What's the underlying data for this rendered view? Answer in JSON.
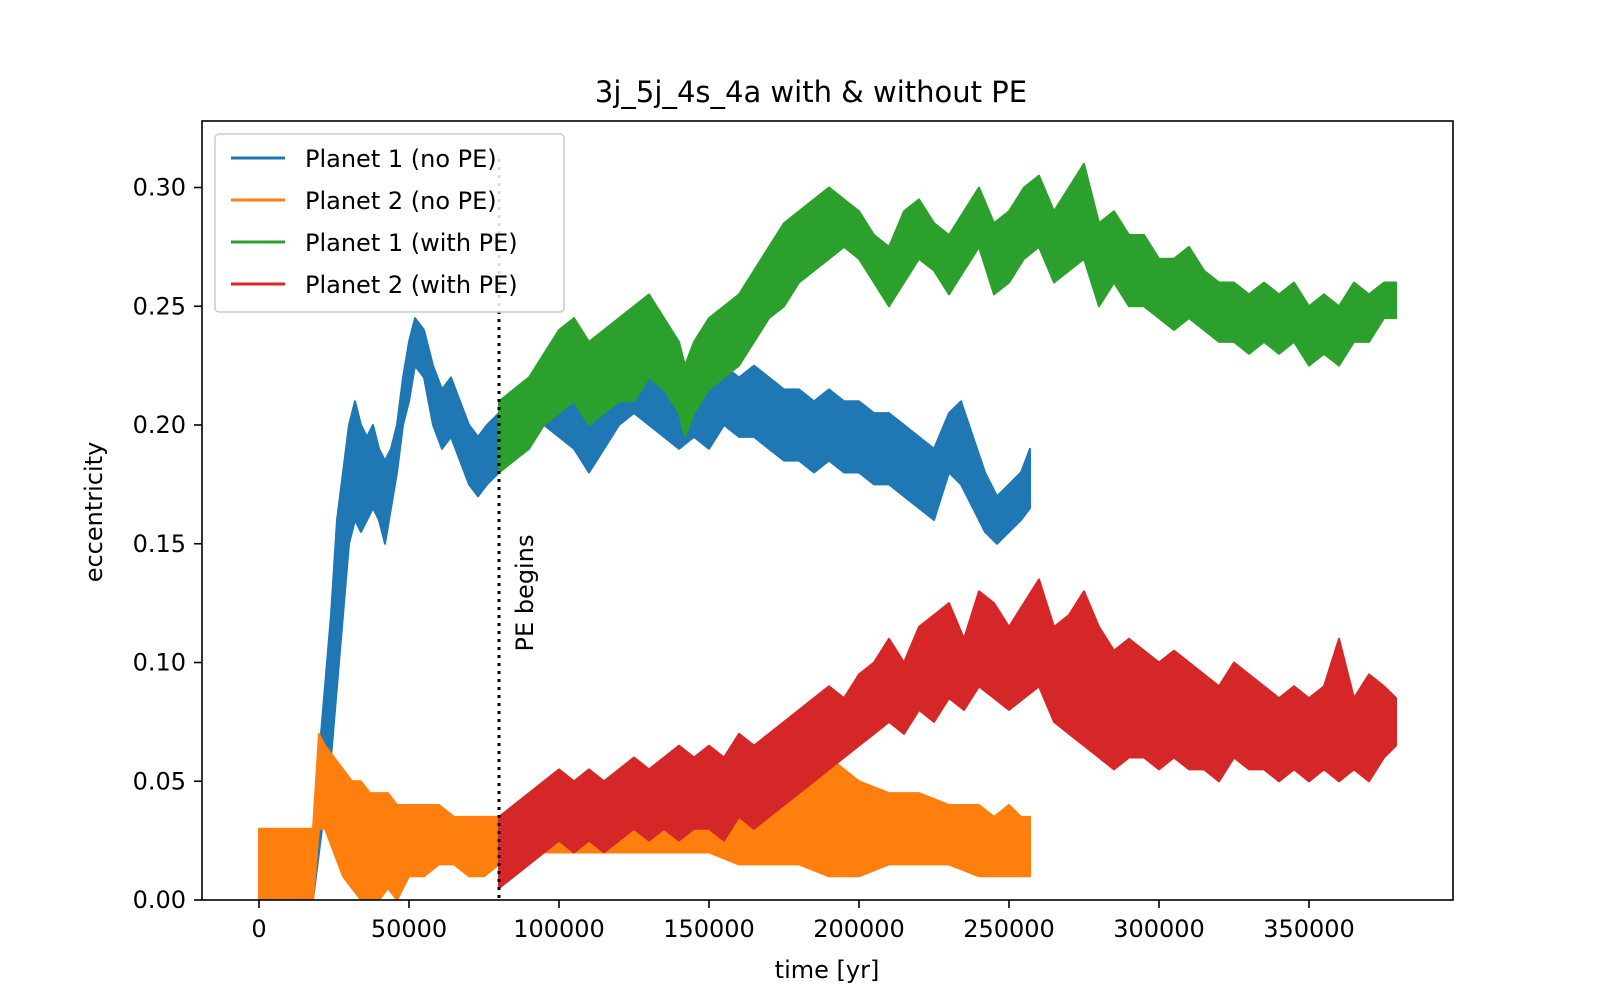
{
  "chart_data": {
    "type": "line",
    "title": "3j_5j_4s_4a with & without PE",
    "xlabel": "time [yr]",
    "ylabel": "eccentricity",
    "xlim": [
      -19000,
      398000
    ],
    "ylim": [
      0,
      0.328
    ],
    "xticks": [
      0,
      50000,
      100000,
      150000,
      200000,
      250000,
      300000,
      350000
    ],
    "xtick_labels": [
      "0",
      "50000",
      "100000",
      "150000",
      "200000",
      "250000",
      "300000",
      "350000"
    ],
    "yticks": [
      0.0,
      0.05,
      0.1,
      0.15,
      0.2,
      0.25,
      0.3
    ],
    "ytick_labels": [
      "0.00",
      "0.05",
      "0.10",
      "0.15",
      "0.20",
      "0.25",
      "0.30"
    ],
    "grid": false,
    "legend_position": "upper-left",
    "annotation": {
      "x": 80000,
      "label": "PE begins",
      "style": "dotted vertical line"
    },
    "series": [
      {
        "name": "Planet 1 (no PE)",
        "color": "#1f77b4",
        "x": [
          18000,
          20000,
          22000,
          24000,
          26000,
          28000,
          30000,
          32000,
          34000,
          36000,
          38000,
          40000,
          42000,
          44000,
          46000,
          48000,
          50000,
          52000,
          55000,
          58000,
          61000,
          64000,
          67000,
          70000,
          73000,
          76000,
          80000,
          85000,
          90000,
          95000,
          100000,
          105000,
          110000,
          115000,
          120000,
          125000,
          130000,
          135000,
          140000,
          145000,
          150000,
          155000,
          160000,
          165000,
          170000,
          175000,
          180000,
          185000,
          190000,
          195000,
          200000,
          205000,
          210000,
          215000,
          220000,
          225000,
          230000,
          234000,
          238000,
          242000,
          246000,
          250000,
          254000,
          257000
        ],
        "y_low": [
          0.0,
          0.02,
          0.04,
          0.06,
          0.09,
          0.12,
          0.15,
          0.16,
          0.155,
          0.16,
          0.165,
          0.16,
          0.15,
          0.165,
          0.18,
          0.2,
          0.21,
          0.225,
          0.22,
          0.2,
          0.19,
          0.195,
          0.185,
          0.175,
          0.17,
          0.175,
          0.18,
          0.19,
          0.195,
          0.2,
          0.195,
          0.19,
          0.18,
          0.19,
          0.2,
          0.205,
          0.2,
          0.195,
          0.19,
          0.195,
          0.19,
          0.2,
          0.195,
          0.195,
          0.19,
          0.185,
          0.185,
          0.18,
          0.185,
          0.18,
          0.18,
          0.175,
          0.175,
          0.17,
          0.165,
          0.16,
          0.18,
          0.175,
          0.165,
          0.155,
          0.15,
          0.155,
          0.16,
          0.165
        ],
        "y_high": [
          0.02,
          0.06,
          0.09,
          0.12,
          0.16,
          0.18,
          0.2,
          0.21,
          0.2,
          0.195,
          0.2,
          0.19,
          0.185,
          0.19,
          0.2,
          0.22,
          0.235,
          0.245,
          0.24,
          0.225,
          0.215,
          0.22,
          0.21,
          0.2,
          0.195,
          0.2,
          0.205,
          0.215,
          0.22,
          0.225,
          0.22,
          0.215,
          0.21,
          0.215,
          0.22,
          0.225,
          0.23,
          0.225,
          0.22,
          0.225,
          0.22,
          0.225,
          0.22,
          0.225,
          0.22,
          0.215,
          0.215,
          0.21,
          0.215,
          0.21,
          0.21,
          0.205,
          0.205,
          0.2,
          0.195,
          0.19,
          0.205,
          0.21,
          0.195,
          0.18,
          0.17,
          0.175,
          0.18,
          0.19
        ]
      },
      {
        "name": "Planet 2 (no PE)",
        "color": "#ff7f0e",
        "x": [
          0,
          5000,
          10000,
          15000,
          18000,
          20000,
          22000,
          25000,
          28000,
          31000,
          34000,
          37000,
          40000,
          43000,
          46000,
          50000,
          55000,
          60000,
          65000,
          70000,
          75000,
          80000,
          90000,
          100000,
          110000,
          120000,
          130000,
          140000,
          150000,
          160000,
          170000,
          180000,
          190000,
          200000,
          210000,
          220000,
          230000,
          240000,
          245000,
          250000,
          254000,
          257000
        ],
        "y_low": [
          0.0,
          0.0,
          0.0,
          0.0,
          0.0,
          0.03,
          0.03,
          0.02,
          0.01,
          0.005,
          0.0,
          0.0,
          0.0,
          0.005,
          0.0,
          0.01,
          0.01,
          0.015,
          0.015,
          0.01,
          0.01,
          0.015,
          0.02,
          0.02,
          0.02,
          0.02,
          0.02,
          0.02,
          0.02,
          0.015,
          0.015,
          0.015,
          0.01,
          0.01,
          0.015,
          0.015,
          0.015,
          0.01,
          0.01,
          0.01,
          0.01,
          0.01
        ],
        "y_high": [
          0.03,
          0.03,
          0.03,
          0.03,
          0.03,
          0.07,
          0.065,
          0.06,
          0.055,
          0.05,
          0.05,
          0.045,
          0.045,
          0.045,
          0.04,
          0.04,
          0.04,
          0.04,
          0.035,
          0.035,
          0.035,
          0.035,
          0.04,
          0.045,
          0.045,
          0.045,
          0.05,
          0.055,
          0.05,
          0.05,
          0.05,
          0.055,
          0.06,
          0.05,
          0.045,
          0.045,
          0.04,
          0.04,
          0.035,
          0.04,
          0.035,
          0.035
        ]
      },
      {
        "name": "Planet 1 (with PE)",
        "color": "#2ca02c",
        "x": [
          80000,
          85000,
          90000,
          95000,
          100000,
          105000,
          110000,
          115000,
          120000,
          125000,
          130000,
          135000,
          140000,
          142000,
          145000,
          150000,
          155000,
          160000,
          165000,
          170000,
          175000,
          180000,
          185000,
          190000,
          195000,
          200000,
          205000,
          210000,
          215000,
          220000,
          225000,
          230000,
          235000,
          240000,
          245000,
          250000,
          255000,
          260000,
          265000,
          270000,
          275000,
          280000,
          285000,
          290000,
          295000,
          300000,
          305000,
          310000,
          315000,
          320000,
          325000,
          330000,
          335000,
          340000,
          345000,
          350000,
          355000,
          360000,
          365000,
          370000,
          375000,
          379000
        ],
        "y_low": [
          0.18,
          0.185,
          0.19,
          0.2,
          0.205,
          0.21,
          0.2,
          0.205,
          0.21,
          0.21,
          0.22,
          0.215,
          0.205,
          0.195,
          0.205,
          0.215,
          0.22,
          0.225,
          0.235,
          0.245,
          0.25,
          0.26,
          0.265,
          0.27,
          0.275,
          0.27,
          0.26,
          0.25,
          0.26,
          0.27,
          0.265,
          0.255,
          0.265,
          0.275,
          0.255,
          0.26,
          0.27,
          0.275,
          0.26,
          0.265,
          0.27,
          0.25,
          0.26,
          0.25,
          0.25,
          0.245,
          0.24,
          0.245,
          0.24,
          0.235,
          0.235,
          0.23,
          0.235,
          0.23,
          0.235,
          0.225,
          0.23,
          0.225,
          0.235,
          0.235,
          0.245,
          0.245
        ],
        "y_high": [
          0.21,
          0.215,
          0.22,
          0.23,
          0.24,
          0.245,
          0.235,
          0.24,
          0.245,
          0.25,
          0.255,
          0.245,
          0.235,
          0.225,
          0.235,
          0.245,
          0.25,
          0.255,
          0.265,
          0.275,
          0.285,
          0.29,
          0.295,
          0.3,
          0.295,
          0.29,
          0.28,
          0.275,
          0.29,
          0.295,
          0.285,
          0.28,
          0.29,
          0.3,
          0.285,
          0.29,
          0.3,
          0.305,
          0.29,
          0.3,
          0.31,
          0.285,
          0.29,
          0.28,
          0.28,
          0.27,
          0.27,
          0.275,
          0.265,
          0.26,
          0.26,
          0.255,
          0.26,
          0.255,
          0.26,
          0.25,
          0.255,
          0.25,
          0.26,
          0.255,
          0.26,
          0.26
        ]
      },
      {
        "name": "Planet 2 (with PE)",
        "color": "#d62728",
        "x": [
          80000,
          85000,
          90000,
          95000,
          100000,
          105000,
          110000,
          115000,
          120000,
          125000,
          130000,
          135000,
          140000,
          145000,
          150000,
          155000,
          160000,
          165000,
          170000,
          175000,
          180000,
          185000,
          190000,
          195000,
          200000,
          205000,
          210000,
          215000,
          220000,
          225000,
          230000,
          235000,
          240000,
          245000,
          250000,
          255000,
          260000,
          265000,
          270000,
          275000,
          280000,
          285000,
          290000,
          295000,
          300000,
          305000,
          310000,
          315000,
          320000,
          325000,
          330000,
          335000,
          340000,
          345000,
          350000,
          355000,
          360000,
          365000,
          370000,
          375000,
          379000
        ],
        "y_low": [
          0.005,
          0.01,
          0.015,
          0.02,
          0.025,
          0.02,
          0.025,
          0.02,
          0.025,
          0.03,
          0.025,
          0.03,
          0.025,
          0.03,
          0.03,
          0.025,
          0.035,
          0.03,
          0.035,
          0.04,
          0.045,
          0.05,
          0.055,
          0.06,
          0.065,
          0.07,
          0.075,
          0.07,
          0.08,
          0.075,
          0.085,
          0.08,
          0.09,
          0.085,
          0.08,
          0.085,
          0.09,
          0.075,
          0.07,
          0.065,
          0.06,
          0.055,
          0.06,
          0.06,
          0.055,
          0.06,
          0.055,
          0.055,
          0.05,
          0.06,
          0.055,
          0.055,
          0.05,
          0.055,
          0.05,
          0.055,
          0.05,
          0.055,
          0.05,
          0.06,
          0.065
        ],
        "y_high": [
          0.035,
          0.04,
          0.045,
          0.05,
          0.055,
          0.05,
          0.055,
          0.05,
          0.055,
          0.06,
          0.055,
          0.06,
          0.065,
          0.06,
          0.065,
          0.06,
          0.07,
          0.065,
          0.07,
          0.075,
          0.08,
          0.085,
          0.09,
          0.085,
          0.095,
          0.1,
          0.11,
          0.1,
          0.115,
          0.12,
          0.125,
          0.11,
          0.13,
          0.125,
          0.115,
          0.125,
          0.135,
          0.115,
          0.12,
          0.13,
          0.115,
          0.105,
          0.11,
          0.105,
          0.1,
          0.105,
          0.1,
          0.095,
          0.09,
          0.1,
          0.095,
          0.09,
          0.085,
          0.09,
          0.085,
          0.09,
          0.11,
          0.085,
          0.095,
          0.09,
          0.085
        ]
      }
    ]
  }
}
